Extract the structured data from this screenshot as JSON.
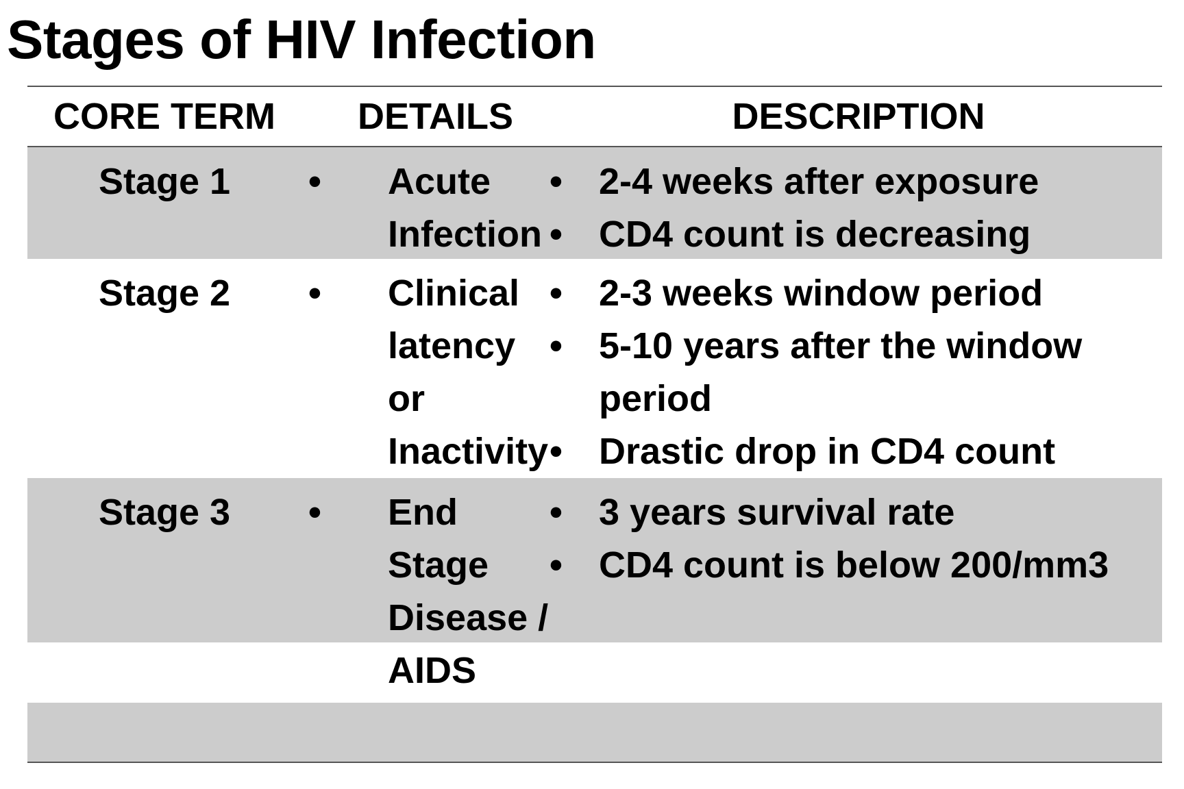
{
  "title": "Stages of HIV Infection",
  "headers": {
    "core_term": "CORE TERM",
    "details": "DETAILS",
    "description": "DESCRIPTION"
  },
  "bullet_glyph": "•",
  "rows": [
    {
      "term": "Stage 1",
      "details": [
        "Acute Infection"
      ],
      "description": [
        "2-4 weeks after exposure",
        "CD4 count is decreasing"
      ]
    },
    {
      "term": "Stage 2",
      "details": [
        "Clinical latency or Inactivity"
      ],
      "description": [
        "2-3 weeks window period",
        "5-10 years after the window period",
        "Drastic drop in CD4 count"
      ]
    },
    {
      "term": "Stage 3",
      "details": [
        "End Stage Disease / AIDS"
      ],
      "description": [
        "3 years survival rate",
        "CD4 count is below 200/mm3"
      ]
    }
  ],
  "colors": {
    "row_shade": "#cccccc",
    "rule": "#555555",
    "text": "#000000"
  }
}
